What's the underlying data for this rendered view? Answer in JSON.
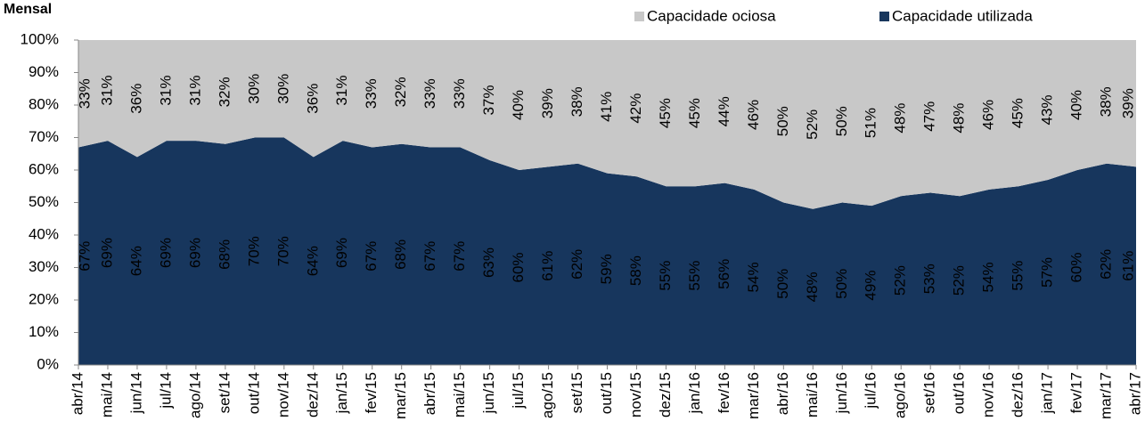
{
  "chart_data": {
    "type": "stacked_area",
    "title": "Mensal",
    "categories": [
      "abr/14",
      "mai/14",
      "jun/14",
      "jul/14",
      "ago/14",
      "set/14",
      "out/14",
      "nov/14",
      "dez/14",
      "jan/15",
      "fev/15",
      "mar/15",
      "abr/15",
      "mai/15",
      "jun/15",
      "jul/15",
      "ago/15",
      "set/15",
      "out/15",
      "nov/15",
      "dez/15",
      "jan/16",
      "fev/16",
      "mar/16",
      "abr/16",
      "mai/16",
      "jun/16",
      "jul/16",
      "ago/16",
      "set/16",
      "out/16",
      "nov/16",
      "dez/16",
      "jan/17",
      "fev/17",
      "mar/17",
      "abr/17"
    ],
    "series": [
      {
        "name": "Capacidade utilizada",
        "color": "#17365d",
        "values": [
          67,
          69,
          64,
          69,
          69,
          68,
          70,
          70,
          64,
          69,
          67,
          68,
          67,
          67,
          63,
          60,
          61,
          62,
          59,
          58,
          55,
          55,
          56,
          54,
          50,
          48,
          50,
          49,
          52,
          53,
          52,
          54,
          55,
          57,
          60,
          62,
          61
        ],
        "value_labels": [
          "67%",
          "69%",
          "64%",
          "69%",
          "69%",
          "68%",
          "70%",
          "70%",
          "64%",
          "69%",
          "67%",
          "68%",
          "67%",
          "67%",
          "63%",
          "60%",
          "61%",
          "62%",
          "59%",
          "58%",
          "55%",
          "55%",
          "56%",
          "54%",
          "50%",
          "48%",
          "50%",
          "49%",
          "52%",
          "53%",
          "52%",
          "54%",
          "55%",
          "57%",
          "60%",
          "62%",
          "61%"
        ]
      },
      {
        "name": "Capacidade ociosa",
        "color": "#c8c8c8",
        "values": [
          33,
          31,
          36,
          31,
          31,
          32,
          30,
          30,
          36,
          31,
          33,
          32,
          33,
          33,
          37,
          40,
          39,
          38,
          41,
          42,
          45,
          45,
          44,
          46,
          50,
          52,
          50,
          51,
          48,
          47,
          48,
          46,
          45,
          43,
          40,
          38,
          39
        ],
        "value_labels": [
          "33%",
          "31%",
          "36%",
          "31%",
          "31%",
          "32%",
          "30%",
          "30%",
          "36%",
          "31%",
          "33%",
          "32%",
          "33%",
          "33%",
          "37%",
          "40%",
          "39%",
          "38%",
          "41%",
          "42%",
          "45%",
          "45%",
          "44%",
          "46%",
          "50%",
          "52%",
          "50%",
          "51%",
          "48%",
          "47%",
          "48%",
          "46%",
          "45%",
          "43%",
          "40%",
          "38%",
          "39%"
        ]
      }
    ],
    "ylim": [
      0,
      100
    ],
    "yticks": [
      {
        "value": 0,
        "label": "0%"
      },
      {
        "value": 10,
        "label": "10%"
      },
      {
        "value": 20,
        "label": "20%"
      },
      {
        "value": 30,
        "label": "30%"
      },
      {
        "value": 40,
        "label": "40%"
      },
      {
        "value": 50,
        "label": "50%"
      },
      {
        "value": 60,
        "label": "60%"
      },
      {
        "value": 70,
        "label": "70%"
      },
      {
        "value": 80,
        "label": "80%"
      },
      {
        "value": 90,
        "label": "90%"
      },
      {
        "value": 100,
        "label": "100%"
      }
    ]
  }
}
